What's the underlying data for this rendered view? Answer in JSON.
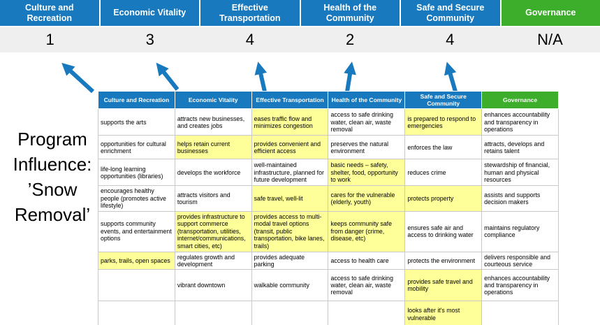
{
  "scoreboard": {
    "columns": [
      {
        "label": "Culture and Recreation",
        "score": "1"
      },
      {
        "label": "Economic Vitality",
        "score": "3"
      },
      {
        "label": "Effective Transportation",
        "score": "4"
      },
      {
        "label": "Health of the Community",
        "score": "2"
      },
      {
        "label": "Safe and Secure Community",
        "score": "4"
      },
      {
        "label": "Governance",
        "score": "N/A"
      }
    ]
  },
  "program_label": {
    "text": "Program Influence: ’Snow Removal’"
  },
  "colors": {
    "header_blue": "#1879BE",
    "header_green": "#3CAE2B",
    "score_band_gray": "#EFEFEF",
    "highlight_yellow": "#FFFF99",
    "arrow_blue": "#1879BE"
  },
  "matrix": {
    "headers": [
      {
        "label": "Culture and Recreation",
        "color": "blue"
      },
      {
        "label": "Economic Vitality",
        "color": "blue"
      },
      {
        "label": "Effective Transportation",
        "color": "blue"
      },
      {
        "label": "Health of the Community",
        "color": "blue"
      },
      {
        "label": "Safe and Secure Community",
        "color": "blue"
      },
      {
        "label": "Governance",
        "color": "green"
      }
    ],
    "rows": [
      [
        {
          "text": "supports the arts",
          "highlight": false
        },
        {
          "text": "attracts new businesses, and creates jobs",
          "highlight": false
        },
        {
          "text": "eases traffic flow and minimizes congestion",
          "highlight": true
        },
        {
          "text": "access to safe drinking water, clean air, waste removal",
          "highlight": false
        },
        {
          "text": "is prepared to respond to emergencies",
          "highlight": true
        },
        {
          "text": "enhances accountability and transparency in operations",
          "highlight": false
        }
      ],
      [
        {
          "text": "opportunities for cultural enrichment",
          "highlight": false
        },
        {
          "text": "helps retain current businesses",
          "highlight": true
        },
        {
          "text": "provides convenient and efficient access",
          "highlight": true
        },
        {
          "text": "preserves the natural environment",
          "highlight": false
        },
        {
          "text": "enforces the law",
          "highlight": false
        },
        {
          "text": "attracts, develops and retains talent",
          "highlight": false
        }
      ],
      [
        {
          "text": "life-long learning opportunities (libraries)",
          "highlight": false
        },
        {
          "text": "develops the workforce",
          "highlight": false
        },
        {
          "text": "well-maintained infrastructure, planned for future development",
          "highlight": false
        },
        {
          "text": "basic needs – safety, shelter, food, opportunity to work",
          "highlight": true
        },
        {
          "text": "reduces crime",
          "highlight": false
        },
        {
          "text": "stewardship of financial, human and physical resources",
          "highlight": false
        }
      ],
      [
        {
          "text": "encourages healthy people (promotes active lifestyle)",
          "highlight": false
        },
        {
          "text": "attracts visitors and tourism",
          "highlight": false
        },
        {
          "text": "safe travel, well-lit",
          "highlight": true
        },
        {
          "text": "cares for the vulnerable (elderly, youth)",
          "highlight": true
        },
        {
          "text": "protects property",
          "highlight": true
        },
        {
          "text": "assists and supports decision makers",
          "highlight": false
        }
      ],
      [
        {
          "text": "supports community events, and entertainment options",
          "highlight": false
        },
        {
          "text": "provides infrastructure to support commerce (transportation, utilities, internet/communications, smart cities, etc)",
          "highlight": true
        },
        {
          "text": "provides access to multi-modal travel options (transit, public transportation, bike lanes, trails)",
          "highlight": true
        },
        {
          "text": "keeps community safe from danger (crime, disease, etc)",
          "highlight": true
        },
        {
          "text": "ensures safe air and access to drinking water",
          "highlight": false
        },
        {
          "text": "maintains regulatory compliance",
          "highlight": false
        }
      ],
      [
        {
          "text": "parks, trails, open spaces",
          "highlight": true
        },
        {
          "text": "regulates growth and development",
          "highlight": false
        },
        {
          "text": "provides adequate parking",
          "highlight": false
        },
        {
          "text": "access to health care",
          "highlight": false
        },
        {
          "text": "protects the environment",
          "highlight": false
        },
        {
          "text": "delivers responsible and courteous service",
          "highlight": false
        }
      ],
      [
        {
          "text": "",
          "highlight": false
        },
        {
          "text": "vibrant downtown",
          "highlight": false
        },
        {
          "text": "walkable community",
          "highlight": false
        },
        {
          "text": "access to safe drinking water, clean air, waste removal",
          "highlight": false
        },
        {
          "text": "provides safe travel and mobility",
          "highlight": true
        },
        {
          "text": "enhances accountability and transparency in operations",
          "highlight": false
        }
      ],
      [
        {
          "text": "",
          "highlight": false
        },
        {
          "text": "",
          "highlight": false
        },
        {
          "text": "",
          "highlight": false
        },
        {
          "text": "",
          "highlight": false
        },
        {
          "text": "looks after it's most vulnerable",
          "highlight": true
        },
        {
          "text": "",
          "highlight": false
        }
      ]
    ]
  }
}
